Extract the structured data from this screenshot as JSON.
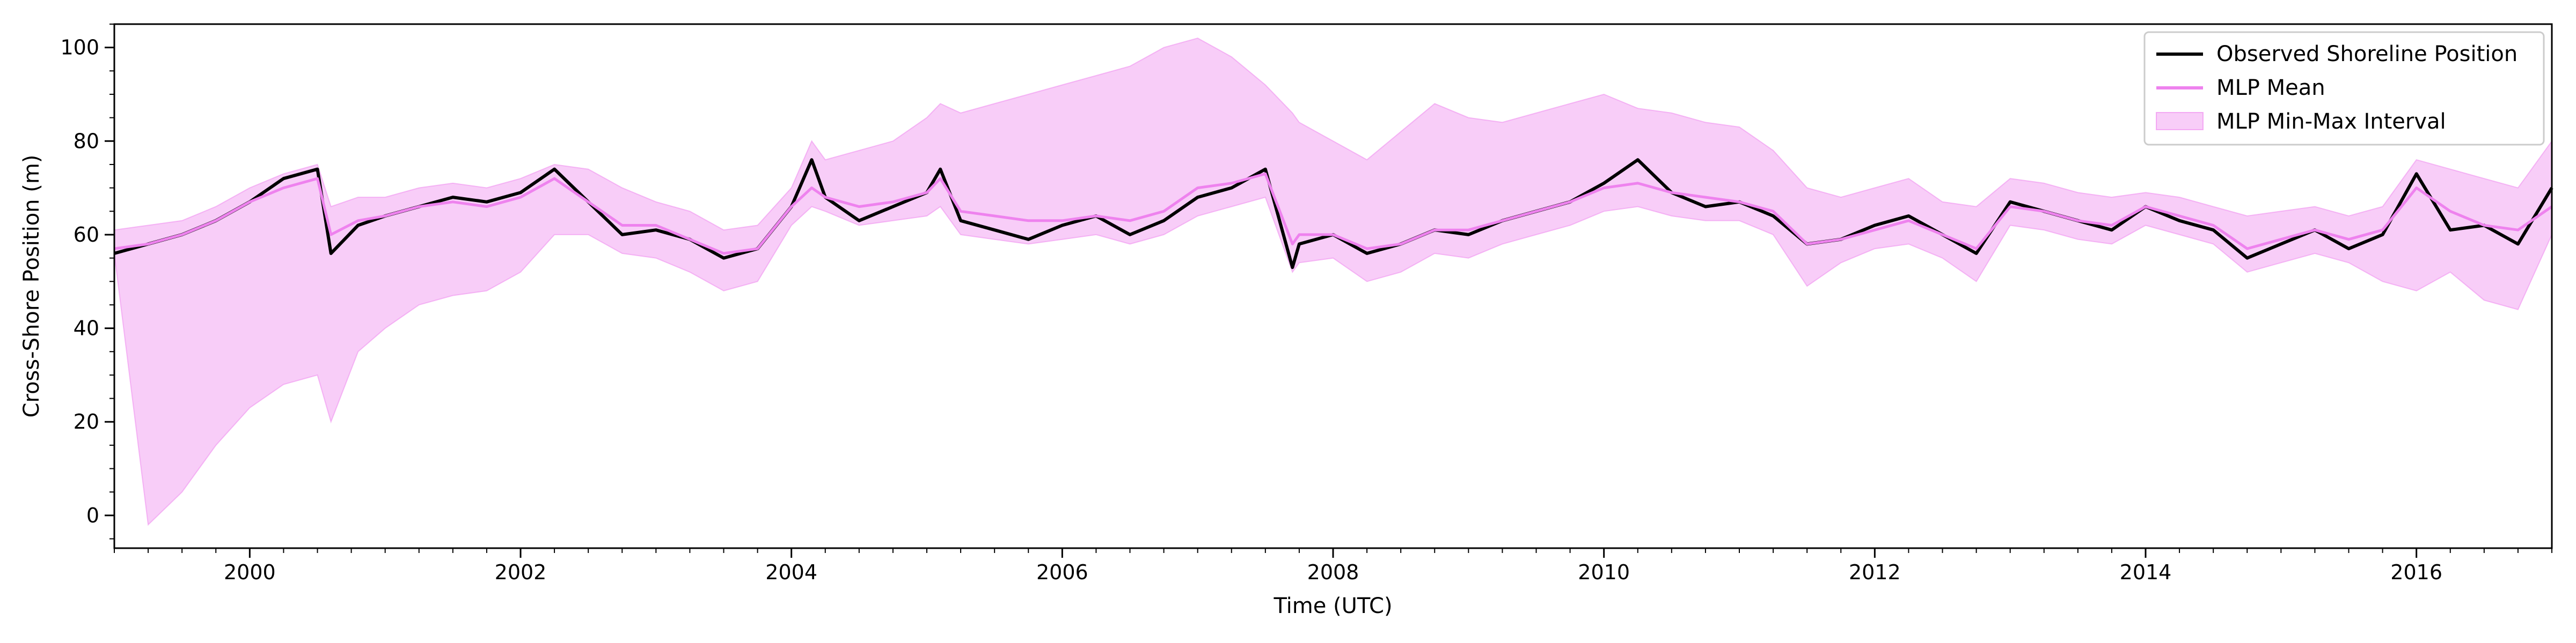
{
  "chart_data": {
    "type": "line",
    "xlabel": "Time (UTC)",
    "ylabel": "Cross-Shore Position (m)",
    "xlim": [
      1999.0,
      2017.0
    ],
    "ylim": [
      -7,
      105
    ],
    "x_ticks": [
      "2000",
      "2002",
      "2004",
      "2006",
      "2008",
      "2010",
      "2012",
      "2014",
      "2016"
    ],
    "y_ticks": [
      "0",
      "20",
      "40",
      "60",
      "80",
      "100"
    ],
    "legend_position": "top-right",
    "grid": false,
    "series": [
      {
        "name": "Observed Shoreline Position",
        "style": "line",
        "color": "#000000",
        "x": [
          1999.0,
          1999.25,
          1999.5,
          1999.75,
          2000.0,
          2000.25,
          2000.5,
          2000.6,
          2000.8,
          2001.0,
          2001.25,
          2001.5,
          2001.75,
          2002.0,
          2002.25,
          2002.5,
          2002.75,
          2003.0,
          2003.25,
          2003.5,
          2003.75,
          2004.0,
          2004.15,
          2004.25,
          2004.5,
          2004.75,
          2005.0,
          2005.1,
          2005.25,
          2005.5,
          2005.75,
          2006.0,
          2006.25,
          2006.5,
          2006.75,
          2007.0,
          2007.25,
          2007.5,
          2007.7,
          2007.75,
          2008.0,
          2008.25,
          2008.5,
          2008.75,
          2009.0,
          2009.25,
          2009.5,
          2009.75,
          2010.0,
          2010.25,
          2010.5,
          2010.75,
          2011.0,
          2011.25,
          2011.5,
          2011.75,
          2012.0,
          2012.25,
          2012.5,
          2012.75,
          2013.0,
          2013.25,
          2013.5,
          2013.75,
          2014.0,
          2014.25,
          2014.5,
          2014.75,
          2015.0,
          2015.25,
          2015.5,
          2015.75,
          2016.0,
          2016.25,
          2016.5,
          2016.75,
          2017.0
        ],
        "y": [
          56,
          58,
          60,
          63,
          67,
          72,
          74,
          56,
          62,
          64,
          66,
          68,
          67,
          69,
          74,
          67,
          60,
          61,
          59,
          55,
          57,
          66,
          76,
          68,
          63,
          66,
          69,
          74,
          63,
          61,
          59,
          62,
          64,
          60,
          63,
          68,
          70,
          74,
          53,
          58,
          60,
          56,
          58,
          61,
          60,
          63,
          65,
          67,
          71,
          76,
          69,
          66,
          67,
          64,
          58,
          59,
          62,
          64,
          60,
          56,
          67,
          65,
          63,
          61,
          66,
          63,
          61,
          55,
          58,
          61,
          57,
          60,
          73,
          61,
          62,
          58,
          70
        ]
      },
      {
        "name": "MLP Mean",
        "style": "line",
        "color": "#ee82ee",
        "x": [
          1999.0,
          1999.25,
          1999.5,
          1999.75,
          2000.0,
          2000.25,
          2000.5,
          2000.6,
          2000.8,
          2001.0,
          2001.25,
          2001.5,
          2001.75,
          2002.0,
          2002.25,
          2002.5,
          2002.75,
          2003.0,
          2003.25,
          2003.5,
          2003.75,
          2004.0,
          2004.15,
          2004.25,
          2004.5,
          2004.75,
          2005.0,
          2005.1,
          2005.25,
          2005.5,
          2005.75,
          2006.0,
          2006.25,
          2006.5,
          2006.75,
          2007.0,
          2007.25,
          2007.5,
          2007.7,
          2007.75,
          2008.0,
          2008.25,
          2008.5,
          2008.75,
          2009.0,
          2009.25,
          2009.5,
          2009.75,
          2010.0,
          2010.25,
          2010.5,
          2010.75,
          2011.0,
          2011.25,
          2011.5,
          2011.75,
          2012.0,
          2012.25,
          2012.5,
          2012.75,
          2013.0,
          2013.25,
          2013.5,
          2013.75,
          2014.0,
          2014.25,
          2014.5,
          2014.75,
          2015.0,
          2015.25,
          2015.5,
          2015.75,
          2016.0,
          2016.25,
          2016.5,
          2016.75,
          2017.0
        ],
        "y": [
          57,
          58,
          60,
          63,
          67,
          70,
          72,
          60,
          63,
          64,
          66,
          67,
          66,
          68,
          72,
          67,
          62,
          62,
          59,
          56,
          57,
          66,
          70,
          68,
          66,
          67,
          69,
          72,
          65,
          64,
          63,
          63,
          64,
          63,
          65,
          70,
          71,
          73,
          58,
          60,
          60,
          57,
          58,
          61,
          61,
          63,
          65,
          67,
          70,
          71,
          69,
          68,
          67,
          65,
          58,
          59,
          61,
          63,
          60,
          57,
          66,
          65,
          63,
          62,
          66,
          64,
          62,
          57,
          59,
          61,
          59,
          61,
          70,
          65,
          62,
          61,
          66
        ]
      },
      {
        "name": "MLP Min-Max Interval",
        "style": "band",
        "color": "#ee82ee",
        "x": [
          1999.0,
          1999.25,
          1999.5,
          1999.75,
          2000.0,
          2000.25,
          2000.5,
          2000.6,
          2000.8,
          2001.0,
          2001.25,
          2001.5,
          2001.75,
          2002.0,
          2002.25,
          2002.5,
          2002.75,
          2003.0,
          2003.25,
          2003.5,
          2003.75,
          2004.0,
          2004.15,
          2004.25,
          2004.5,
          2004.75,
          2005.0,
          2005.1,
          2005.25,
          2005.5,
          2005.75,
          2006.0,
          2006.25,
          2006.5,
          2006.75,
          2007.0,
          2007.25,
          2007.5,
          2007.7,
          2007.75,
          2008.0,
          2008.25,
          2008.5,
          2008.75,
          2009.0,
          2009.25,
          2009.5,
          2009.75,
          2010.0,
          2010.25,
          2010.5,
          2010.75,
          2011.0,
          2011.25,
          2011.5,
          2011.75,
          2012.0,
          2012.25,
          2012.5,
          2012.75,
          2013.0,
          2013.25,
          2013.5,
          2013.75,
          2014.0,
          2014.25,
          2014.5,
          2014.75,
          2015.0,
          2015.25,
          2015.5,
          2015.75,
          2016.0,
          2016.25,
          2016.5,
          2016.75,
          2017.0
        ],
        "lower": [
          56,
          -2,
          5,
          15,
          23,
          28,
          30,
          20,
          35,
          40,
          45,
          47,
          48,
          52,
          60,
          60,
          56,
          55,
          52,
          48,
          50,
          62,
          66,
          65,
          62,
          63,
          64,
          66,
          60,
          59,
          58,
          59,
          60,
          58,
          60,
          64,
          66,
          68,
          52,
          54,
          55,
          50,
          52,
          56,
          55,
          58,
          60,
          62,
          65,
          66,
          64,
          63,
          63,
          60,
          49,
          54,
          57,
          58,
          55,
          50,
          62,
          61,
          59,
          58,
          62,
          60,
          58,
          52,
          54,
          56,
          54,
          50,
          48,
          52,
          46,
          44,
          60
        ],
        "upper": [
          61,
          62,
          63,
          66,
          70,
          73,
          75,
          66,
          68,
          68,
          70,
          71,
          70,
          72,
          75,
          74,
          70,
          67,
          65,
          61,
          62,
          70,
          80,
          76,
          78,
          80,
          85,
          88,
          86,
          88,
          90,
          92,
          94,
          96,
          100,
          102,
          98,
          92,
          86,
          84,
          80,
          76,
          82,
          88,
          85,
          84,
          86,
          88,
          90,
          87,
          86,
          84,
          83,
          78,
          70,
          68,
          70,
          72,
          67,
          66,
          72,
          71,
          69,
          68,
          69,
          68,
          66,
          64,
          65,
          66,
          64,
          66,
          76,
          74,
          72,
          70,
          80
        ]
      }
    ]
  }
}
